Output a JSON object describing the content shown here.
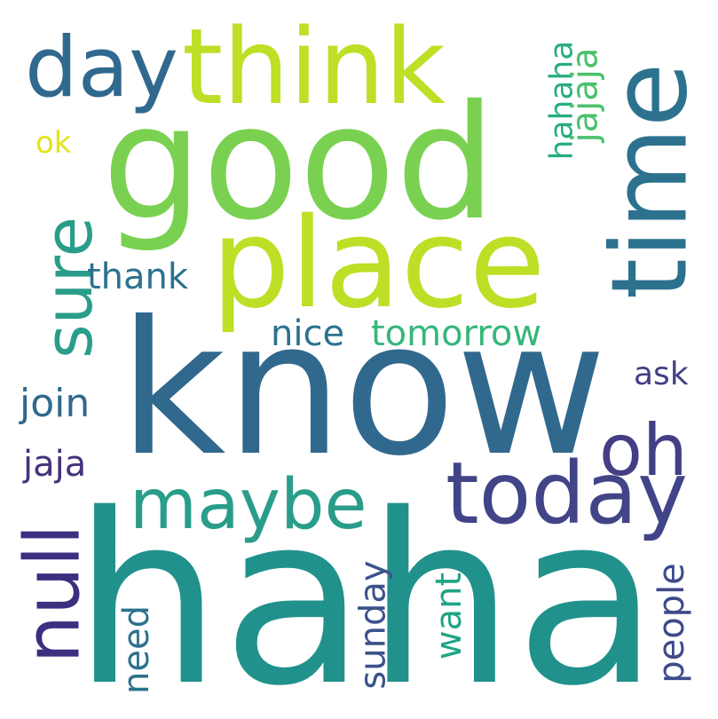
{
  "words": [
    {
      "text": "haha",
      "color": "#21918c",
      "rotated": false
    },
    {
      "text": "know",
      "color": "#31688e",
      "rotated": false
    },
    {
      "text": "good",
      "color": "#7ad151",
      "rotated": false
    },
    {
      "text": "place",
      "color": "#bddf26",
      "rotated": false
    },
    {
      "text": "think",
      "color": "#bddf26",
      "rotated": false
    },
    {
      "text": "time",
      "color": "#2c728e",
      "rotated": true
    },
    {
      "text": "day",
      "color": "#31688e",
      "rotated": false
    },
    {
      "text": "today",
      "color": "#414487",
      "rotated": false
    },
    {
      "text": "maybe",
      "color": "#2a9d8a",
      "rotated": false
    },
    {
      "text": "oh",
      "color": "#433e85",
      "rotated": false
    },
    {
      "text": "null",
      "color": "#3b2f80",
      "rotated": true
    },
    {
      "text": "sure",
      "color": "#2a9d8a",
      "rotated": true
    },
    {
      "text": "tomorrow",
      "color": "#35b779",
      "rotated": false
    },
    {
      "text": "nice",
      "color": "#2c728e",
      "rotated": false
    },
    {
      "text": "thank",
      "color": "#2c728e",
      "rotated": false
    },
    {
      "text": "join",
      "color": "#31688e",
      "rotated": false
    },
    {
      "text": "jaja",
      "color": "#46327e",
      "rotated": false
    },
    {
      "text": "ask",
      "color": "#433e85",
      "rotated": false
    },
    {
      "text": "ok",
      "color": "#e2e418",
      "rotated": false
    },
    {
      "text": "hahaha",
      "color": "#26ad81",
      "rotated": true
    },
    {
      "text": "jajaja",
      "color": "#4ac16d",
      "rotated": true
    },
    {
      "text": "sunday",
      "color": "#3b528b",
      "rotated": true
    },
    {
      "text": "want",
      "color": "#20a486",
      "rotated": true
    },
    {
      "text": "need",
      "color": "#2c728e",
      "rotated": true
    },
    {
      "text": "people",
      "color": "#3e4a89",
      "rotated": true
    }
  ]
}
